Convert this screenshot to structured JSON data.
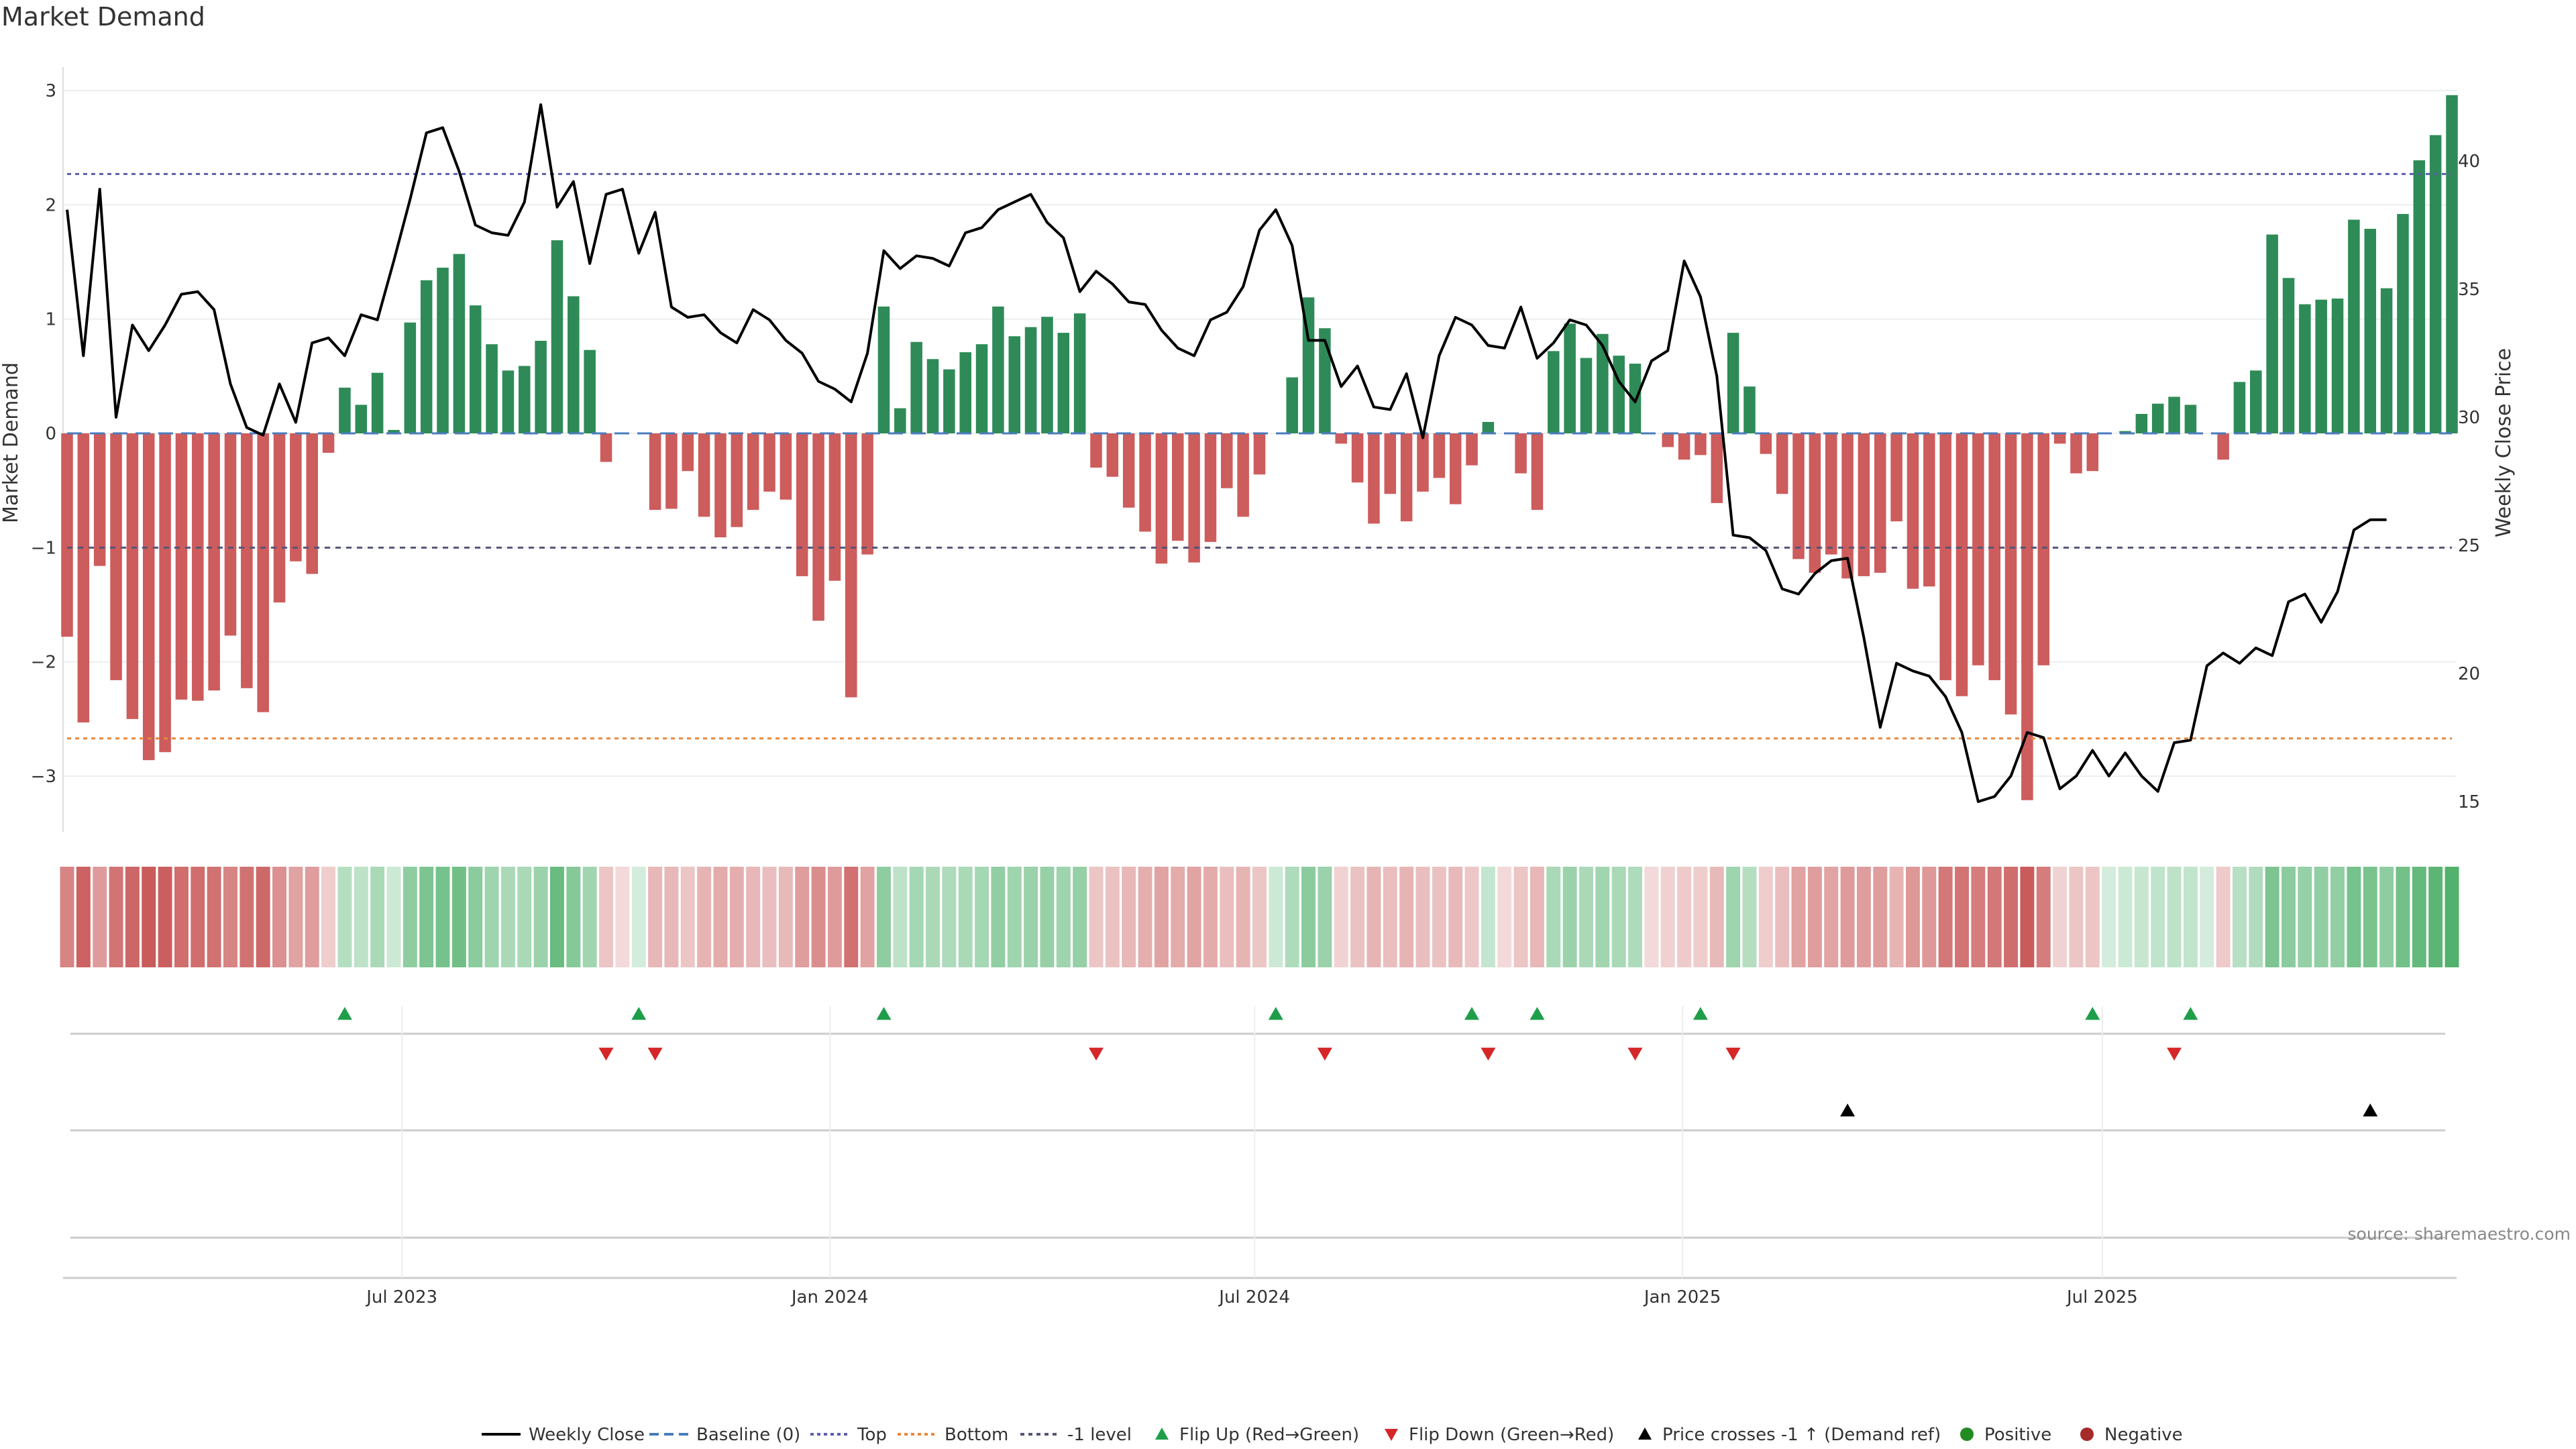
{
  "chart_data": {
    "type": "bar",
    "title": "Market Demand",
    "ylabel_left": "Market Demand",
    "ylabel_right": "Weekly Close Price",
    "ylim_left": [
      -3.5,
      3.1
    ],
    "ylim_right": [
      13.5,
      43.5
    ],
    "yticks_left": [
      "3",
      "2",
      "1",
      "0",
      "−1",
      "−2",
      "−3"
    ],
    "yticks_left_values": [
      3,
      2,
      1,
      0,
      -1,
      -2,
      -3
    ],
    "yticks_right": [
      "40",
      "35",
      "30",
      "25",
      "20",
      "15"
    ],
    "yticks_right_values": [
      40,
      35,
      30,
      25,
      20,
      15
    ],
    "levels": {
      "top": 2.27,
      "bottom": -2.67,
      "minus_one": -1.0,
      "baseline": 0
    },
    "x_tick_labels": [
      "Jul 2023",
      "Jan 2024",
      "Jul 2024",
      "Jan 2025",
      "Jul 2025"
    ],
    "x_tick_weeks": [
      20.5,
      46.7,
      72.7,
      98.9,
      124.6
    ],
    "demand": [
      -1.78,
      -2.53,
      -1.16,
      -2.16,
      -2.5,
      -2.86,
      -2.79,
      -2.33,
      -2.34,
      -2.25,
      -1.77,
      -2.23,
      -2.44,
      -1.48,
      -1.12,
      -1.23,
      -0.17,
      0.4,
      0.25,
      0.53,
      0.03,
      0.97,
      1.34,
      1.45,
      1.57,
      1.12,
      0.78,
      0.55,
      0.59,
      0.81,
      1.69,
      1.2,
      0.73,
      -0.25,
      0.0,
      0.0,
      -0.67,
      -0.66,
      -0.33,
      -0.73,
      -0.91,
      -0.82,
      -0.67,
      -0.51,
      -0.58,
      -1.25,
      -1.64,
      -1.29,
      -2.31,
      -1.06,
      1.11,
      0.22,
      0.8,
      0.65,
      0.56,
      0.71,
      0.78,
      1.11,
      0.85,
      0.93,
      1.02,
      0.88,
      1.05,
      -0.3,
      -0.38,
      -0.65,
      -0.86,
      -1.14,
      -0.94,
      -1.13,
      -0.95,
      -0.48,
      -0.73,
      -0.36,
      0.0,
      0.49,
      1.19,
      0.92,
      -0.09,
      -0.43,
      -0.79,
      -0.53,
      -0.77,
      -0.51,
      -0.39,
      -0.62,
      -0.28,
      0.1,
      0.0,
      -0.35,
      -0.67,
      0.72,
      0.96,
      0.66,
      0.87,
      0.68,
      0.61,
      0.0,
      -0.12,
      -0.23,
      -0.19,
      -0.61,
      0.88,
      0.41,
      -0.18,
      -0.53,
      -1.1,
      -1.22,
      -1.06,
      -1.27,
      -1.25,
      -1.22,
      -0.77,
      -1.36,
      -1.34,
      -2.16,
      -2.3,
      -2.03,
      -2.16,
      -2.46,
      -3.21,
      -2.03,
      -0.09,
      -0.35,
      -0.33,
      0.0,
      0.02,
      0.17,
      0.26,
      0.32,
      0.25,
      0.0,
      -0.23,
      0.45,
      0.55,
      1.74,
      1.36,
      1.13,
      1.17,
      1.18,
      1.87,
      1.79,
      1.27,
      1.92,
      2.39,
      2.61,
      2.96
    ],
    "weekly_close": [
      38.1,
      32.4,
      38.9,
      30.0,
      33.6,
      32.6,
      33.6,
      34.8,
      34.9,
      34.2,
      31.3,
      29.6,
      29.3,
      31.3,
      29.8,
      32.9,
      33.1,
      32.4,
      34.0,
      33.8,
      36.1,
      38.5,
      41.1,
      41.3,
      39.6,
      37.5,
      37.2,
      37.1,
      38.4,
      42.2,
      38.2,
      39.2,
      36.0,
      38.7,
      38.9,
      36.4,
      38.0,
      34.3,
      33.9,
      34.0,
      33.3,
      32.9,
      34.2,
      33.8,
      33.0,
      32.5,
      31.4,
      31.1,
      30.6,
      32.5,
      36.5,
      35.8,
      36.3,
      36.2,
      35.9,
      37.2,
      37.4,
      38.1,
      38.4,
      38.7,
      37.6,
      37.0,
      34.9,
      35.7,
      35.2,
      34.5,
      34.4,
      33.4,
      32.7,
      32.4,
      33.8,
      34.1,
      35.1,
      37.3,
      38.1,
      36.7,
      33.0,
      33.0,
      31.2,
      32.0,
      30.4,
      30.3,
      31.7,
      29.2,
      32.4,
      33.9,
      33.6,
      32.8,
      32.7,
      34.3,
      32.3,
      32.9,
      33.8,
      33.6,
      32.8,
      31.4,
      30.6,
      32.2,
      32.6,
      36.1,
      34.7,
      31.6,
      25.4,
      25.3,
      24.8,
      23.3,
      23.1,
      23.9,
      24.4,
      24.5,
      21.4,
      17.9,
      20.4,
      20.1,
      19.9,
      19.1,
      17.7,
      15.0,
      15.2,
      16.0,
      17.7,
      17.5,
      15.5,
      16.0,
      17.0,
      16.0,
      16.9,
      16.0,
      15.4,
      17.3,
      17.4,
      20.3,
      20.8,
      20.4,
      21.0,
      20.7,
      22.8,
      23.1,
      22.0,
      23.2,
      25.6,
      26.0,
      26.0
    ],
    "color_band": [
      -0.66,
      -0.91,
      -0.5,
      -0.78,
      -0.88,
      -0.96,
      -0.93,
      -0.83,
      -0.83,
      -0.79,
      -0.66,
      -0.79,
      -0.86,
      -0.57,
      -0.45,
      -0.48,
      -0.14,
      0.25,
      0.2,
      0.33,
      0.1,
      0.5,
      0.62,
      0.66,
      0.7,
      0.52,
      0.4,
      0.32,
      0.33,
      0.42,
      0.75,
      0.56,
      0.38,
      -0.2,
      -0.05,
      0.05,
      -0.3,
      -0.3,
      -0.2,
      -0.32,
      -0.38,
      -0.36,
      -0.3,
      -0.25,
      -0.28,
      -0.48,
      -0.6,
      -0.5,
      -0.8,
      -0.45,
      0.5,
      0.2,
      0.36,
      0.32,
      0.3,
      0.33,
      0.36,
      0.48,
      0.4,
      0.42,
      0.45,
      0.4,
      0.46,
      -0.2,
      -0.22,
      -0.3,
      -0.36,
      -0.45,
      -0.38,
      -0.44,
      -0.38,
      -0.25,
      -0.32,
      -0.2,
      0.1,
      0.3,
      0.52,
      0.42,
      -0.1,
      -0.22,
      -0.32,
      -0.25,
      -0.32,
      -0.25,
      -0.22,
      -0.28,
      -0.18,
      0.15,
      -0.05,
      -0.2,
      -0.3,
      0.33,
      0.42,
      0.32,
      0.38,
      0.33,
      0.3,
      -0.05,
      -0.12,
      -0.16,
      -0.14,
      -0.28,
      0.4,
      0.25,
      -0.14,
      -0.25,
      -0.45,
      -0.48,
      -0.44,
      -0.5,
      -0.48,
      -0.48,
      -0.32,
      -0.52,
      -0.52,
      -0.75,
      -0.78,
      -0.72,
      -0.75,
      -0.82,
      -0.96,
      -0.72,
      -0.1,
      -0.2,
      -0.2,
      0.05,
      0.1,
      0.14,
      0.18,
      0.2,
      0.17,
      0.05,
      -0.16,
      0.24,
      0.28,
      0.62,
      0.52,
      0.46,
      0.48,
      0.48,
      0.66,
      0.64,
      0.5,
      0.68,
      0.78,
      0.84,
      0.9
    ],
    "flip_up_weeks": [
      17,
      35,
      50,
      74,
      86,
      90,
      100,
      124,
      130
    ],
    "flip_down_weeks": [
      33,
      36,
      63,
      77,
      87,
      96,
      102,
      129
    ],
    "price_cross_weeks": [
      109,
      141
    ],
    "legend": [
      "Weekly Close",
      "Baseline (0)",
      "Top",
      "Bottom",
      "-1 level",
      "Flip Up (Red→Green)",
      "Flip Down (Green→Red)",
      "Price crosses -1 ↑ (Demand ref)",
      "Positive",
      "Negative"
    ],
    "source": "source: sharemaestro.com"
  },
  "colors": {
    "positive_bar": "#2e8b57",
    "negative_bar": "#cd5c5c",
    "price_line": "#000000",
    "top_line": "#5b5fa8",
    "bottom_line": "#e8883a",
    "flip_up": "#1f9e4a",
    "flip_down": "#d62728",
    "positive_dot": "#228b22",
    "negative_dot": "#a52a2a"
  }
}
